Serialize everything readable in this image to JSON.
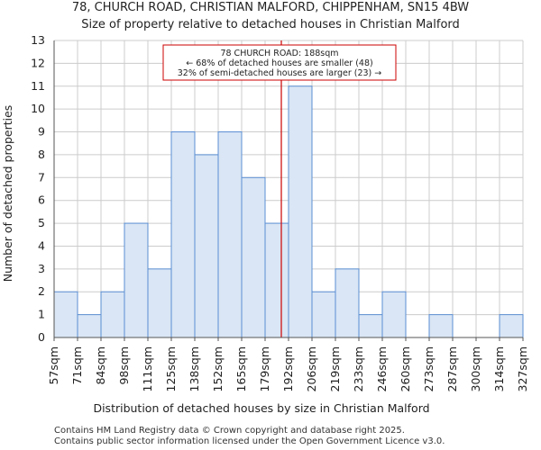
{
  "chart_data": {
    "type": "bar",
    "title": "78, CHURCH ROAD, CHRISTIAN MALFORD, CHIPPENHAM, SN15 4BW",
    "subtitle": "Size of property relative to detached houses in Christian Malford",
    "xlabel": "Distribution of detached houses by size in Christian Malford",
    "ylabel": "Number of detached properties",
    "ylim": [
      0,
      13
    ],
    "yticks": [
      0,
      1,
      2,
      3,
      4,
      5,
      6,
      7,
      8,
      9,
      10,
      11,
      12,
      13
    ],
    "bin_edges": [
      "57sqm",
      "71sqm",
      "84sqm",
      "98sqm",
      "111sqm",
      "125sqm",
      "138sqm",
      "152sqm",
      "165sqm",
      "179sqm",
      "192sqm",
      "206sqm",
      "219sqm",
      "233sqm",
      "246sqm",
      "260sqm",
      "273sqm",
      "287sqm",
      "300sqm",
      "314sqm",
      "327sqm"
    ],
    "bin_edge_values": [
      57,
      71,
      84,
      98,
      111,
      125,
      138,
      152,
      165,
      179,
      192,
      206,
      219,
      233,
      246,
      260,
      273,
      287,
      300,
      314,
      327
    ],
    "values": [
      2,
      1,
      2,
      5,
      3,
      9,
      8,
      9,
      7,
      5,
      11,
      2,
      3,
      1,
      2,
      0,
      1,
      0,
      0,
      1
    ],
    "grid": true,
    "bar_color": "#dae6f5",
    "bar_edge_color": "#5b8fd3",
    "marker": {
      "value": 188,
      "color": "#cc0000",
      "annotation": [
        "78 CHURCH ROAD: 188sqm",
        "← 68% of detached houses are smaller (48)",
        "32% of semi-detached houses are larger (23) →"
      ]
    }
  },
  "footer": [
    "Contains HM Land Registry data © Crown copyright and database right 2025.",
    "Contains public sector information licensed under the Open Government Licence v3.0."
  ]
}
